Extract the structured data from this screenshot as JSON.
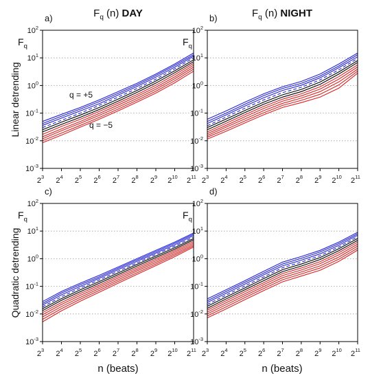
{
  "figure": {
    "columns": [
      {
        "prefix": "F",
        "sub": "q",
        "paren": " (n)",
        "label": "DAY"
      },
      {
        "prefix": "F",
        "sub": "q",
        "paren": " (n)",
        "label": "NIGHT"
      }
    ],
    "rows": [
      "Linear detrending",
      "Quadratic detrending"
    ],
    "yaxis_symbol": {
      "main": "F",
      "sub": "q"
    },
    "xlabel": "n  (beats)"
  },
  "colors": {
    "positive_q": "#2222dd",
    "mid_q": "#000000",
    "negative_q": "#dd2222",
    "grid": "#9a9a9a"
  },
  "chart_data": [
    {
      "type": "line",
      "panel": "a)",
      "x_scale": "log2",
      "y_scale": "log10",
      "xlim": [
        8,
        2048
      ],
      "ylim": [
        0.001,
        100
      ],
      "x_ticks": [
        {
          "base": "2",
          "exp": "3"
        },
        {
          "base": "2",
          "exp": "4"
        },
        {
          "base": "2",
          "exp": "5"
        },
        {
          "base": "2",
          "exp": "6"
        },
        {
          "base": "2",
          "exp": "7"
        },
        {
          "base": "2",
          "exp": "8"
        },
        {
          "base": "2",
          "exp": "9"
        },
        {
          "base": "2",
          "exp": "10"
        },
        {
          "base": "2",
          "exp": "11"
        }
      ],
      "y_ticks": [
        {
          "base": "10",
          "exp": "-3"
        },
        {
          "base": "10",
          "exp": "-2"
        },
        {
          "base": "10",
          "exp": "-1"
        },
        {
          "base": "10",
          "exp": "0"
        },
        {
          "base": "10",
          "exp": "1"
        },
        {
          "base": "10",
          "exp": "2"
        }
      ],
      "grid": "horizontal dotted",
      "annotations": [
        {
          "text": "q = +5",
          "color": "#2222dd"
        },
        {
          "text": "q = −5",
          "color": "#dd2222"
        }
      ],
      "x": [
        8,
        16,
        32,
        64,
        128,
        256,
        512,
        1024,
        2048
      ],
      "series": [
        {
          "q": 5,
          "values": [
            0.05,
            0.09,
            0.16,
            0.3,
            0.6,
            1.2,
            2.6,
            6,
            15
          ]
        },
        {
          "q": 4,
          "values": [
            0.042,
            0.077,
            0.14,
            0.26,
            0.52,
            1.05,
            2.3,
            5.3,
            13
          ]
        },
        {
          "q": 3,
          "values": [
            0.036,
            0.066,
            0.12,
            0.22,
            0.45,
            0.92,
            2,
            4.6,
            11.5
          ]
        },
        {
          "q": 2,
          "values": [
            0.03,
            0.055,
            0.1,
            0.19,
            0.38,
            0.78,
            1.7,
            4,
            10
          ],
          "style": "dashed"
        },
        {
          "q": 1,
          "values": [
            0.025,
            0.047,
            0.085,
            0.16,
            0.32,
            0.66,
            1.45,
            3.4,
            8.5
          ]
        },
        {
          "q": 0,
          "values": [
            0.021,
            0.039,
            0.071,
            0.135,
            0.27,
            0.56,
            1.22,
            2.9,
            7.3
          ]
        },
        {
          "q": -1,
          "values": [
            0.017,
            0.033,
            0.06,
            0.115,
            0.23,
            0.47,
            1.02,
            2.45,
            6.3
          ]
        },
        {
          "q": -2,
          "values": [
            0.014,
            0.027,
            0.05,
            0.097,
            0.195,
            0.4,
            0.86,
            2.05,
            5.4
          ]
        },
        {
          "q": -3,
          "values": [
            0.0118,
            0.023,
            0.043,
            0.083,
            0.165,
            0.34,
            0.73,
            1.75,
            4.6
          ]
        },
        {
          "q": -4,
          "values": [
            0.01,
            0.019,
            0.036,
            0.07,
            0.14,
            0.29,
            0.62,
            1.48,
            3.9
          ]
        },
        {
          "q": -5,
          "values": [
            0.0085,
            0.016,
            0.031,
            0.06,
            0.12,
            0.25,
            0.53,
            1.25,
            3.3
          ]
        }
      ]
    },
    {
      "type": "line",
      "panel": "b)",
      "x_scale": "log2",
      "y_scale": "log10",
      "xlim": [
        8,
        2048
      ],
      "ylim": [
        0.001,
        100
      ],
      "x_ticks": [
        {
          "base": "2",
          "exp": "3"
        },
        {
          "base": "2",
          "exp": "4"
        },
        {
          "base": "2",
          "exp": "5"
        },
        {
          "base": "2",
          "exp": "6"
        },
        {
          "base": "2",
          "exp": "7"
        },
        {
          "base": "2",
          "exp": "8"
        },
        {
          "base": "2",
          "exp": "9"
        },
        {
          "base": "2",
          "exp": "10"
        },
        {
          "base": "2",
          "exp": "11"
        }
      ],
      "y_ticks": [
        {
          "base": "10",
          "exp": "-3"
        },
        {
          "base": "10",
          "exp": "-2"
        },
        {
          "base": "10",
          "exp": "-1"
        },
        {
          "base": "10",
          "exp": "0"
        },
        {
          "base": "10",
          "exp": "1"
        },
        {
          "base": "10",
          "exp": "2"
        }
      ],
      "grid": "horizontal dotted",
      "x": [
        8,
        16,
        32,
        64,
        128,
        256,
        512,
        1024,
        2048
      ],
      "series": [
        {
          "q": 5,
          "values": [
            0.06,
            0.12,
            0.25,
            0.5,
            0.9,
            1.4,
            2.6,
            6,
            15
          ]
        },
        {
          "q": 4,
          "values": [
            0.05,
            0.1,
            0.21,
            0.43,
            0.78,
            1.2,
            2.2,
            5.1,
            13
          ]
        },
        {
          "q": 3,
          "values": [
            0.042,
            0.086,
            0.18,
            0.36,
            0.66,
            1.02,
            1.9,
            4.4,
            11
          ]
        },
        {
          "q": 2,
          "values": [
            0.035,
            0.072,
            0.15,
            0.3,
            0.55,
            0.86,
            1.6,
            3.7,
            9.5
          ],
          "style": "dashed"
        },
        {
          "q": 1,
          "values": [
            0.03,
            0.061,
            0.125,
            0.25,
            0.46,
            0.72,
            1.33,
            3.1,
            8
          ]
        },
        {
          "q": 0,
          "values": [
            0.025,
            0.051,
            0.105,
            0.21,
            0.38,
            0.6,
            1.1,
            2.6,
            6.8
          ]
        },
        {
          "q": -1,
          "values": [
            0.021,
            0.043,
            0.088,
            0.175,
            0.32,
            0.5,
            0.9,
            2.1,
            5.6
          ]
        },
        {
          "q": -2,
          "values": [
            0.018,
            0.036,
            0.074,
            0.147,
            0.27,
            0.42,
            0.74,
            1.7,
            4.7
          ]
        },
        {
          "q": -3,
          "values": [
            0.0155,
            0.031,
            0.062,
            0.123,
            0.225,
            0.35,
            0.6,
            1.35,
            3.9
          ]
        },
        {
          "q": -4,
          "values": [
            0.0135,
            0.026,
            0.052,
            0.103,
            0.19,
            0.29,
            0.48,
            1.05,
            3.3
          ]
        },
        {
          "q": -5,
          "values": [
            0.0115,
            0.022,
            0.044,
            0.087,
            0.16,
            0.24,
            0.38,
            0.8,
            2.8
          ]
        }
      ]
    },
    {
      "type": "line",
      "panel": "c)",
      "x_scale": "log2",
      "y_scale": "log10",
      "xlim": [
        8,
        2048
      ],
      "ylim": [
        0.001,
        100
      ],
      "x_ticks": [
        {
          "base": "2",
          "exp": "3"
        },
        {
          "base": "2",
          "exp": "4"
        },
        {
          "base": "2",
          "exp": "5"
        },
        {
          "base": "2",
          "exp": "6"
        },
        {
          "base": "2",
          "exp": "7"
        },
        {
          "base": "2",
          "exp": "8"
        },
        {
          "base": "2",
          "exp": "9"
        },
        {
          "base": "2",
          "exp": "10"
        },
        {
          "base": "2",
          "exp": "11"
        }
      ],
      "y_ticks": [
        {
          "base": "10",
          "exp": "-3"
        },
        {
          "base": "10",
          "exp": "-2"
        },
        {
          "base": "10",
          "exp": "-1"
        },
        {
          "base": "10",
          "exp": "0"
        },
        {
          "base": "10",
          "exp": "1"
        },
        {
          "base": "10",
          "exp": "2"
        }
      ],
      "grid": "horizontal dotted",
      "x": [
        8,
        16,
        32,
        64,
        128,
        256,
        512,
        1024,
        2048
      ],
      "series": [
        {
          "q": 5,
          "values": [
            0.028,
            0.065,
            0.13,
            0.25,
            0.5,
            1,
            2,
            4,
            8.5
          ]
        },
        {
          "q": 4,
          "values": [
            0.024,
            0.057,
            0.115,
            0.22,
            0.45,
            0.9,
            1.8,
            3.6,
            7.7
          ]
        },
        {
          "q": 3,
          "values": [
            0.021,
            0.049,
            0.1,
            0.195,
            0.4,
            0.8,
            1.6,
            3.2,
            6.9
          ]
        },
        {
          "q": 2,
          "values": [
            0.018,
            0.042,
            0.087,
            0.17,
            0.35,
            0.7,
            1.42,
            2.85,
            6.1
          ],
          "style": "dashed"
        },
        {
          "q": 1,
          "values": [
            0.0155,
            0.036,
            0.075,
            0.148,
            0.305,
            0.62,
            1.25,
            2.5,
            5.4
          ]
        },
        {
          "q": 0,
          "values": [
            0.0132,
            0.031,
            0.064,
            0.128,
            0.265,
            0.54,
            1.1,
            2.2,
            4.8
          ]
        },
        {
          "q": -1,
          "values": [
            0.0112,
            0.026,
            0.055,
            0.11,
            0.23,
            0.47,
            0.96,
            1.95,
            4.2
          ]
        },
        {
          "q": -2,
          "values": [
            0.0094,
            0.022,
            0.047,
            0.095,
            0.2,
            0.41,
            0.84,
            1.72,
            3.7
          ]
        },
        {
          "q": -3,
          "values": [
            0.0078,
            0.0185,
            0.04,
            0.082,
            0.172,
            0.36,
            0.73,
            1.52,
            3.3
          ]
        },
        {
          "q": -4,
          "values": [
            0.0064,
            0.0155,
            0.034,
            0.071,
            0.149,
            0.31,
            0.64,
            1.34,
            2.95
          ]
        },
        {
          "q": -5,
          "values": [
            0.0052,
            0.013,
            0.029,
            0.061,
            0.129,
            0.27,
            0.56,
            1.18,
            2.65
          ]
        }
      ]
    },
    {
      "type": "line",
      "panel": "d)",
      "x_scale": "log2",
      "y_scale": "log10",
      "xlim": [
        8,
        2048
      ],
      "ylim": [
        0.001,
        100
      ],
      "x_ticks": [
        {
          "base": "2",
          "exp": "3"
        },
        {
          "base": "2",
          "exp": "4"
        },
        {
          "base": "2",
          "exp": "5"
        },
        {
          "base": "2",
          "exp": "6"
        },
        {
          "base": "2",
          "exp": "7"
        },
        {
          "base": "2",
          "exp": "8"
        },
        {
          "base": "2",
          "exp": "9"
        },
        {
          "base": "2",
          "exp": "10"
        },
        {
          "base": "2",
          "exp": "11"
        }
      ],
      "y_ticks": [
        {
          "base": "10",
          "exp": "-3"
        },
        {
          "base": "10",
          "exp": "-2"
        },
        {
          "base": "10",
          "exp": "-1"
        },
        {
          "base": "10",
          "exp": "0"
        },
        {
          "base": "10",
          "exp": "1"
        },
        {
          "base": "10",
          "exp": "2"
        }
      ],
      "grid": "horizontal dotted",
      "x": [
        8,
        16,
        32,
        64,
        128,
        256,
        512,
        1024,
        2048
      ],
      "series": [
        {
          "q": 5,
          "values": [
            0.035,
            0.075,
            0.16,
            0.35,
            0.75,
            1.2,
            2,
            4,
            9
          ]
        },
        {
          "q": 4,
          "values": [
            0.03,
            0.065,
            0.14,
            0.3,
            0.64,
            1.03,
            1.75,
            3.5,
            8
          ]
        },
        {
          "q": 3,
          "values": [
            0.026,
            0.056,
            0.12,
            0.26,
            0.55,
            0.88,
            1.5,
            3.05,
            7.1
          ]
        },
        {
          "q": 2,
          "values": [
            0.022,
            0.048,
            0.103,
            0.22,
            0.47,
            0.75,
            1.28,
            2.65,
            6.2
          ],
          "style": "dashed"
        },
        {
          "q": 1,
          "values": [
            0.019,
            0.041,
            0.088,
            0.19,
            0.4,
            0.64,
            1.1,
            2.3,
            5.4
          ]
        },
        {
          "q": 0,
          "values": [
            0.016,
            0.035,
            0.075,
            0.16,
            0.34,
            0.54,
            0.93,
            1.95,
            4.6
          ]
        },
        {
          "q": -1,
          "values": [
            0.0137,
            0.03,
            0.064,
            0.135,
            0.29,
            0.46,
            0.78,
            1.65,
            3.95
          ]
        },
        {
          "q": -2,
          "values": [
            0.0117,
            0.0255,
            0.054,
            0.115,
            0.245,
            0.39,
            0.66,
            1.38,
            3.35
          ]
        },
        {
          "q": -3,
          "values": [
            0.01,
            0.0215,
            0.046,
            0.098,
            0.205,
            0.33,
            0.55,
            1.15,
            2.85
          ]
        },
        {
          "q": -4,
          "values": [
            0.0085,
            0.018,
            0.039,
            0.083,
            0.172,
            0.28,
            0.46,
            0.96,
            2.4
          ]
        },
        {
          "q": -5,
          "values": [
            0.0072,
            0.0152,
            0.033,
            0.07,
            0.145,
            0.235,
            0.38,
            0.8,
            2.05
          ]
        }
      ]
    }
  ]
}
